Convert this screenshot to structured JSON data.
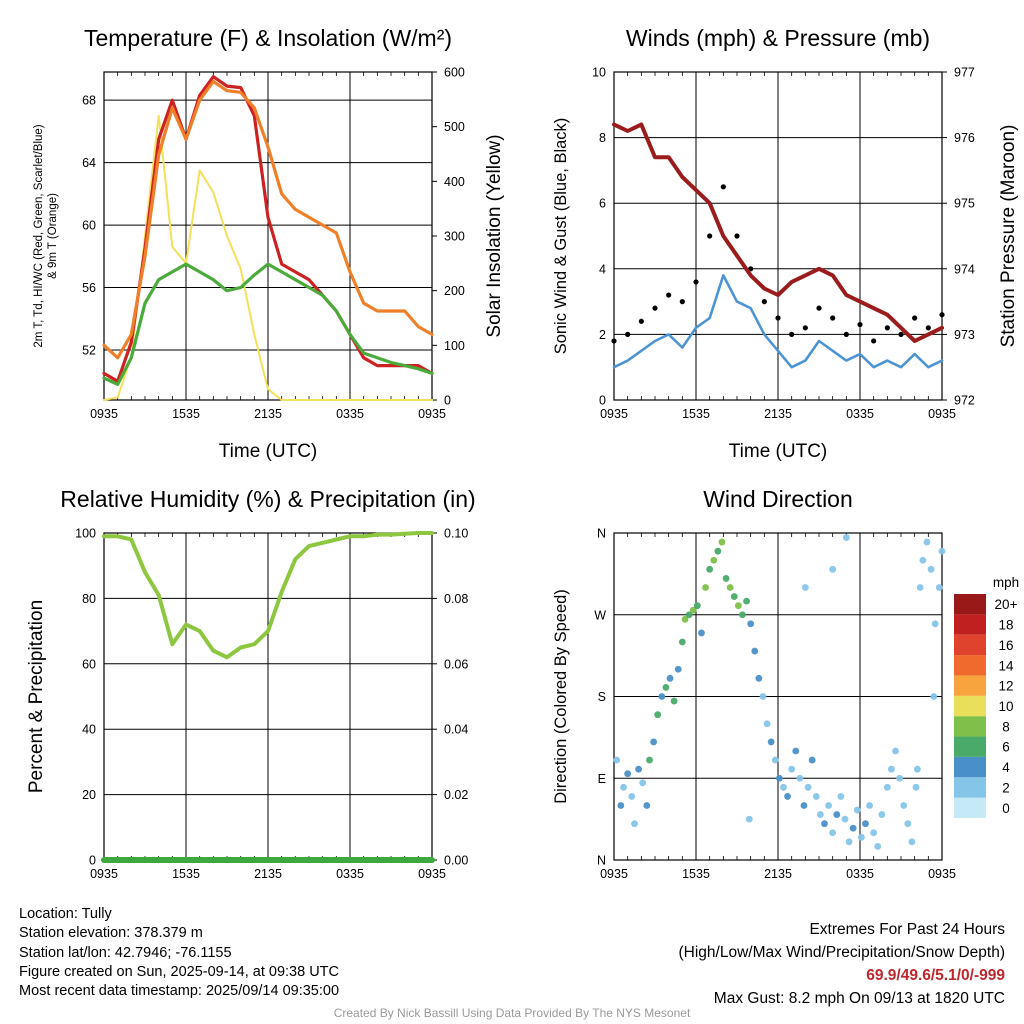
{
  "chart_data": [
    {
      "type": "line",
      "title": "Temperature (F) & Insolation (W/m²)",
      "xlabel": "Time (UTC)",
      "ylabel_lines": [
        "2m T, Td, HI/WC (Red, Green, Scarlet/Blue)",
        "& 9m T (Orange)"
      ],
      "ylabel2": "Solar Insolation (Yellow)",
      "x_ticks": [
        "0935",
        "1535",
        "2135",
        "0335",
        "0935"
      ],
      "y_ticks": [
        52,
        56,
        60,
        64,
        68
      ],
      "y2_ticks": [
        0,
        100,
        200,
        300,
        400,
        500,
        600
      ],
      "ylim": [
        48.8,
        69.8
      ],
      "y2lim": [
        0,
        600
      ],
      "grid": true,
      "x_hours": [
        0,
        1,
        2,
        3,
        4,
        5,
        6,
        7,
        8,
        9,
        10,
        11,
        12,
        13,
        14,
        15,
        16,
        17,
        18,
        19,
        20,
        21,
        22,
        23,
        24
      ],
      "series": [
        {
          "color": "#cc2222",
          "values": [
            50.5,
            50.0,
            52.5,
            58.5,
            65.5,
            68.0,
            65.5,
            68.3,
            69.5,
            68.9,
            68.8,
            67.0,
            60.5,
            57.5,
            57.0,
            56.5,
            55.5,
            54.5,
            53.0,
            51.5,
            51.0,
            51.0,
            51.0,
            51.0,
            50.5
          ]
        },
        {
          "color": "#f07f2a",
          "values": [
            52.3,
            51.5,
            53.0,
            58.0,
            64.5,
            67.5,
            65.5,
            68.0,
            69.2,
            68.6,
            68.5,
            67.5,
            65.0,
            62.0,
            61.0,
            60.5,
            60.0,
            59.5,
            57.0,
            55.0,
            54.5,
            54.5,
            54.5,
            53.5,
            53.0
          ]
        },
        {
          "color": "#4aaa3a",
          "values": [
            50.2,
            49.8,
            51.5,
            55.0,
            56.5,
            57.0,
            57.5,
            57.0,
            56.5,
            55.8,
            56.0,
            56.8,
            57.5,
            57.0,
            56.5,
            56.0,
            55.5,
            54.5,
            53.0,
            51.8,
            51.5,
            51.2,
            51.0,
            50.8,
            50.5
          ]
        }
      ],
      "insolation": {
        "color": "#f5e05a",
        "values": [
          0,
          5,
          80,
          300,
          520,
          280,
          250,
          420,
          380,
          300,
          240,
          120,
          20,
          0,
          0,
          0,
          0,
          0,
          0,
          0,
          0,
          0,
          0,
          0,
          0
        ]
      }
    },
    {
      "type": "line",
      "title": "Winds (mph) & Pressure (mb)",
      "xlabel": "Time (UTC)",
      "ylabel": "Sonic Wind & Gust (Blue, Black)",
      "ylabel2": "Station Pressure (Maroon)",
      "x_ticks": [
        "0935",
        "1535",
        "2135",
        "0335",
        "0935"
      ],
      "y_ticks": [
        0,
        2,
        4,
        6,
        8,
        10
      ],
      "y2_ticks": [
        972,
        973,
        974,
        975,
        976,
        977
      ],
      "ylim": [
        0,
        10
      ],
      "y2lim": [
        972,
        977
      ],
      "grid": true,
      "x_hours": [
        0,
        1,
        2,
        3,
        4,
        5,
        6,
        7,
        8,
        9,
        10,
        11,
        12,
        13,
        14,
        15,
        16,
        17,
        18,
        19,
        20,
        21,
        22,
        23,
        24
      ],
      "series": [
        {
          "name": "Wind",
          "color": "#4d94d3",
          "values": [
            1.0,
            1.2,
            1.5,
            1.8,
            2.0,
            1.6,
            2.2,
            2.5,
            3.8,
            3.0,
            2.8,
            2.0,
            1.5,
            1.0,
            1.2,
            1.8,
            1.5,
            1.2,
            1.4,
            1.0,
            1.2,
            1.0,
            1.4,
            1.0,
            1.2
          ]
        },
        {
          "name": "Gust",
          "color": "#000000",
          "values": [
            1.8,
            2.0,
            2.4,
            2.8,
            3.2,
            3.0,
            3.6,
            5.0,
            6.5,
            5.0,
            4.0,
            3.0,
            2.5,
            2.0,
            2.2,
            2.8,
            2.5,
            2.0,
            2.3,
            1.8,
            2.2,
            2.0,
            2.5,
            2.2,
            2.6
          ]
        },
        {
          "name": "Pressure",
          "color": "#9b1c1c",
          "values": [
            976.2,
            976.1,
            976.2,
            975.7,
            975.7,
            975.4,
            975.2,
            975.0,
            974.5,
            974.2,
            973.9,
            973.7,
            973.6,
            973.8,
            973.9,
            974.0,
            973.9,
            973.6,
            973.5,
            973.4,
            973.3,
            973.1,
            972.9,
            973.0,
            973.1
          ]
        }
      ]
    },
    {
      "type": "line",
      "title": "Relative Humidity (%) & Precipitation (in)",
      "xlabel": "",
      "ylabel": "Percent & Precipitation",
      "x_ticks": [
        "0935",
        "1535",
        "2135",
        "0335",
        "0935"
      ],
      "y_ticks": [
        0,
        20,
        40,
        60,
        80,
        100
      ],
      "y2_ticks": [
        "0.00",
        "0.02",
        "0.04",
        "0.06",
        "0.08",
        "0.10"
      ],
      "ylim": [
        0,
        100
      ],
      "y2lim": [
        0,
        0.1
      ],
      "grid": true,
      "x_hours": [
        0,
        1,
        2,
        3,
        4,
        5,
        6,
        7,
        8,
        9,
        10,
        11,
        12,
        13,
        14,
        15,
        16,
        17,
        18,
        19,
        20,
        21,
        22,
        23,
        24
      ],
      "series": [
        {
          "name": "RH",
          "color": "#8dc63f",
          "values": [
            99,
            99,
            98,
            88,
            81,
            66,
            72,
            70,
            64,
            62,
            65,
            66,
            70,
            82,
            92,
            96,
            97,
            98,
            99,
            99,
            99.5,
            99.5,
            99.8,
            100,
            100
          ]
        },
        {
          "name": "Precipitation",
          "color": "#3da83d",
          "values": [
            0,
            0,
            0,
            0,
            0,
            0,
            0,
            0,
            0,
            0,
            0,
            0,
            0,
            0,
            0,
            0,
            0,
            0,
            0,
            0,
            0,
            0,
            0,
            0,
            0
          ]
        }
      ]
    },
    {
      "type": "scatter",
      "title": "Wind Direction",
      "ylabel": "Direction (Colored By Speed)",
      "x_ticks": [
        "0935",
        "1535",
        "2135",
        "0335",
        "0935"
      ],
      "y_ticks": [
        "N",
        "E",
        "S",
        "W",
        "N"
      ],
      "ylim": [
        0,
        360
      ],
      "grid": true,
      "points": [
        [
          0.2,
          110,
          1
        ],
        [
          0.5,
          60,
          2
        ],
        [
          0.7,
          80,
          1
        ],
        [
          1.0,
          95,
          2
        ],
        [
          1.3,
          70,
          1
        ],
        [
          1.5,
          40,
          1
        ],
        [
          1.8,
          100,
          2
        ],
        [
          2.1,
          85,
          1
        ],
        [
          2.4,
          60,
          2
        ],
        [
          2.6,
          110,
          3
        ],
        [
          2.9,
          130,
          2
        ],
        [
          3.2,
          160,
          3
        ],
        [
          3.5,
          180,
          2
        ],
        [
          3.8,
          190,
          3
        ],
        [
          4.1,
          200,
          2
        ],
        [
          4.4,
          175,
          3
        ],
        [
          4.7,
          210,
          2
        ],
        [
          5.0,
          240,
          3
        ],
        [
          5.2,
          265,
          4
        ],
        [
          5.5,
          270,
          3
        ],
        [
          5.8,
          275,
          4
        ],
        [
          6.1,
          280,
          3
        ],
        [
          6.4,
          250,
          2
        ],
        [
          6.7,
          300,
          4
        ],
        [
          7.0,
          320,
          3
        ],
        [
          7.3,
          330,
          4
        ],
        [
          7.6,
          340,
          3
        ],
        [
          7.9,
          350,
          4
        ],
        [
          8.2,
          310,
          3
        ],
        [
          8.5,
          300,
          4
        ],
        [
          8.8,
          290,
          3
        ],
        [
          9.1,
          280,
          4
        ],
        [
          9.4,
          270,
          3
        ],
        [
          9.7,
          285,
          3
        ],
        [
          10.0,
          260,
          2
        ],
        [
          10.3,
          230,
          2
        ],
        [
          10.6,
          200,
          2
        ],
        [
          10.9,
          180,
          1
        ],
        [
          11.2,
          150,
          1
        ],
        [
          11.5,
          130,
          2
        ],
        [
          11.8,
          110,
          1
        ],
        [
          12.1,
          90,
          2
        ],
        [
          12.4,
          80,
          1
        ],
        [
          12.7,
          70,
          2
        ],
        [
          13.0,
          100,
          1
        ],
        [
          13.3,
          120,
          2
        ],
        [
          13.6,
          90,
          1
        ],
        [
          13.9,
          60,
          2
        ],
        [
          14.2,
          80,
          1
        ],
        [
          14.5,
          110,
          2
        ],
        [
          14.8,
          70,
          1
        ],
        [
          15.1,
          50,
          1
        ],
        [
          15.4,
          40,
          2
        ],
        [
          15.7,
          60,
          1
        ],
        [
          16.0,
          30,
          1
        ],
        [
          16.3,
          50,
          2
        ],
        [
          16.6,
          70,
          1
        ],
        [
          16.9,
          45,
          1
        ],
        [
          17.2,
          20,
          1
        ],
        [
          17.5,
          35,
          2
        ],
        [
          17.8,
          55,
          1
        ],
        [
          18.1,
          25,
          1
        ],
        [
          18.4,
          40,
          2
        ],
        [
          18.7,
          60,
          1
        ],
        [
          19.0,
          30,
          1
        ],
        [
          19.3,
          15,
          1
        ],
        [
          19.6,
          50,
          1
        ],
        [
          20.0,
          80,
          1
        ],
        [
          20.3,
          100,
          1
        ],
        [
          20.6,
          120,
          1
        ],
        [
          20.9,
          90,
          1
        ],
        [
          21.2,
          60,
          1
        ],
        [
          21.5,
          40,
          1
        ],
        [
          21.8,
          20,
          1
        ],
        [
          22.1,
          80,
          1
        ],
        [
          22.4,
          300,
          1
        ],
        [
          22.6,
          330,
          1
        ],
        [
          22.9,
          350,
          1
        ],
        [
          23.2,
          320,
          1
        ],
        [
          23.5,
          260,
          1
        ],
        [
          23.8,
          300,
          1
        ],
        [
          24.0,
          340,
          1
        ],
        [
          9.9,
          45,
          1
        ],
        [
          17.0,
          355,
          1
        ],
        [
          16.0,
          320,
          1
        ],
        [
          14.0,
          300,
          1
        ],
        [
          22.2,
          100,
          1
        ],
        [
          23.4,
          180,
          1
        ]
      ],
      "colorbar": {
        "label": "mph",
        "labels": [
          "0",
          "2",
          "4",
          "6",
          "8",
          "10",
          "12",
          "14",
          "16",
          "18",
          "20+"
        ],
        "colors": [
          "#c6e9f7",
          "#85c5e8",
          "#4a90c8",
          "#4aaa6a",
          "#7ec04a",
          "#e9df5a",
          "#f8a43e",
          "#f06a2e",
          "#e0432d",
          "#c02020",
          "#991818"
        ]
      }
    }
  ],
  "info": {
    "location": "Location: Tully",
    "elevation": "Station elevation: 378.379 m",
    "latlon": "Station lat/lon: 42.7946; -76.1155",
    "created": "Figure created on Sun, 2025-09-14, at 09:38 UTC",
    "recent": "Most recent data timestamp: 2025/09/14 09:35:00"
  },
  "extremes": {
    "title": "Extremes For Past 24 Hours",
    "subtitle": "(High/Low/Max Wind/Precipitation/Snow Depth)",
    "values": "69.9/49.6/5.1/0/-999",
    "gust": "Max Gust: 8.2 mph On 09/13 at 1820 UTC"
  },
  "footer": "Created By Nick Bassill Using Data Provided By The NYS Mesonet"
}
